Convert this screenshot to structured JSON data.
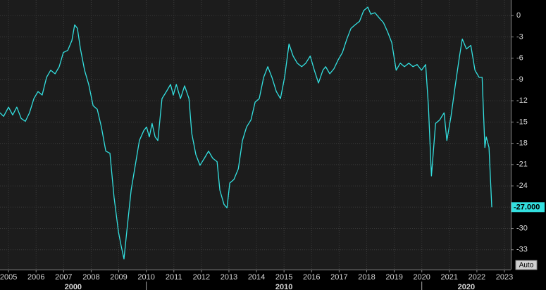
{
  "chart_data": {
    "type": "line",
    "x": [
      2004.69,
      2004.82,
      2005.0,
      2005.15,
      2005.3,
      2005.46,
      2005.61,
      2005.76,
      2005.92,
      2006.07,
      2006.22,
      2006.38,
      2006.53,
      2006.69,
      2006.84,
      2006.99,
      2007.15,
      2007.3,
      2007.4,
      2007.5,
      2007.61,
      2007.76,
      2007.91,
      2008.07,
      2008.22,
      2008.37,
      2008.53,
      2008.68,
      2008.83,
      2008.99,
      2009.09,
      2009.19,
      2009.29,
      2009.45,
      2009.6,
      2009.75,
      2009.91,
      2010.01,
      2010.11,
      2010.21,
      2010.32,
      2010.42,
      2010.57,
      2010.73,
      2010.88,
      2010.98,
      2011.09,
      2011.24,
      2011.39,
      2011.55,
      2011.65,
      2011.8,
      2011.95,
      2012.11,
      2012.26,
      2012.41,
      2012.57,
      2012.67,
      2012.82,
      2012.93,
      2013.03,
      2013.18,
      2013.34,
      2013.49,
      2013.64,
      2013.8,
      2013.95,
      2014.1,
      2014.26,
      2014.41,
      2014.56,
      2014.72,
      2014.87,
      2015.02,
      2015.18,
      2015.33,
      2015.48,
      2015.64,
      2015.79,
      2015.95,
      2016.1,
      2016.25,
      2016.41,
      2016.51,
      2016.66,
      2016.81,
      2016.97,
      2017.12,
      2017.28,
      2017.43,
      2017.58,
      2017.74,
      2017.89,
      2018.04,
      2018.15,
      2018.3,
      2018.45,
      2018.61,
      2018.76,
      2018.91,
      2019.07,
      2019.22,
      2019.37,
      2019.53,
      2019.68,
      2019.83,
      2019.99,
      2020.14,
      2020.24,
      2020.35,
      2020.5,
      2020.65,
      2020.81,
      2020.91,
      2021.06,
      2021.22,
      2021.37,
      2021.47,
      2021.62,
      2021.78,
      2021.93,
      2022.08,
      2022.19,
      2022.29,
      2022.34,
      2022.44,
      2022.54
    ],
    "series": [
      {
        "color": "#33e0e0",
        "values": [
          -13.7,
          -14.2,
          -12.9,
          -14.0,
          -12.9,
          -14.5,
          -14.9,
          -13.7,
          -11.7,
          -10.7,
          -11.2,
          -8.7,
          -7.7,
          -8.2,
          -7.2,
          -5.2,
          -4.9,
          -3.5,
          -1.3,
          -1.8,
          -4.7,
          -7.7,
          -9.7,
          -12.7,
          -13.2,
          -15.7,
          -19.1,
          -19.4,
          -25.6,
          -30.5,
          -32.5,
          -34.3,
          -30.5,
          -24.6,
          -21.1,
          -17.6,
          -16.2,
          -15.7,
          -17.1,
          -15.2,
          -17.1,
          -17.6,
          -11.7,
          -10.7,
          -9.7,
          -11.2,
          -9.7,
          -11.7,
          -9.9,
          -11.7,
          -16.6,
          -19.6,
          -21.1,
          -20.1,
          -19.1,
          -20.1,
          -20.6,
          -24.6,
          -26.6,
          -27.1,
          -23.6,
          -23.1,
          -21.6,
          -17.6,
          -15.7,
          -14.7,
          -12.2,
          -11.7,
          -8.7,
          -7.2,
          -8.7,
          -10.7,
          -11.7,
          -8.7,
          -4.0,
          -5.7,
          -6.7,
          -7.2,
          -6.7,
          -5.7,
          -7.7,
          -9.5,
          -7.7,
          -7.2,
          -8.2,
          -7.5,
          -6.2,
          -5.2,
          -3.3,
          -1.8,
          -1.3,
          -0.8,
          0.7,
          1.2,
          0.2,
          0.4,
          -0.3,
          -1.0,
          -2.3,
          -3.8,
          -7.7,
          -6.7,
          -7.2,
          -6.7,
          -7.2,
          -6.9,
          -7.7,
          -6.9,
          -12.7,
          -22.6,
          -15.2,
          -14.7,
          -13.7,
          -17.6,
          -14.2,
          -9.7,
          -5.7,
          -3.3,
          -4.7,
          -4.2,
          -7.7,
          -8.7,
          -8.7,
          -18.6,
          -17.1,
          -18.6,
          -27
        ]
      }
    ],
    "last_value": {
      "value": -27,
      "label": "-27.000"
    },
    "xlim": [
      2004.69,
      2023.23
    ],
    "xticks": [
      2005,
      2006,
      2007,
      2008,
      2009,
      2010,
      2011,
      2012,
      2013,
      2014,
      2015,
      2016,
      2017,
      2018,
      2019,
      2020,
      2021,
      2022,
      2023
    ],
    "decades": [
      2000,
      2010,
      2020
    ],
    "ylim": [
      -35.8,
      2.2
    ],
    "yticks": [
      0,
      -3,
      -6,
      -9,
      -12,
      -15,
      -18,
      -21,
      -24,
      -27,
      -30,
      -33
    ],
    "grid": true,
    "button": "Auto"
  }
}
